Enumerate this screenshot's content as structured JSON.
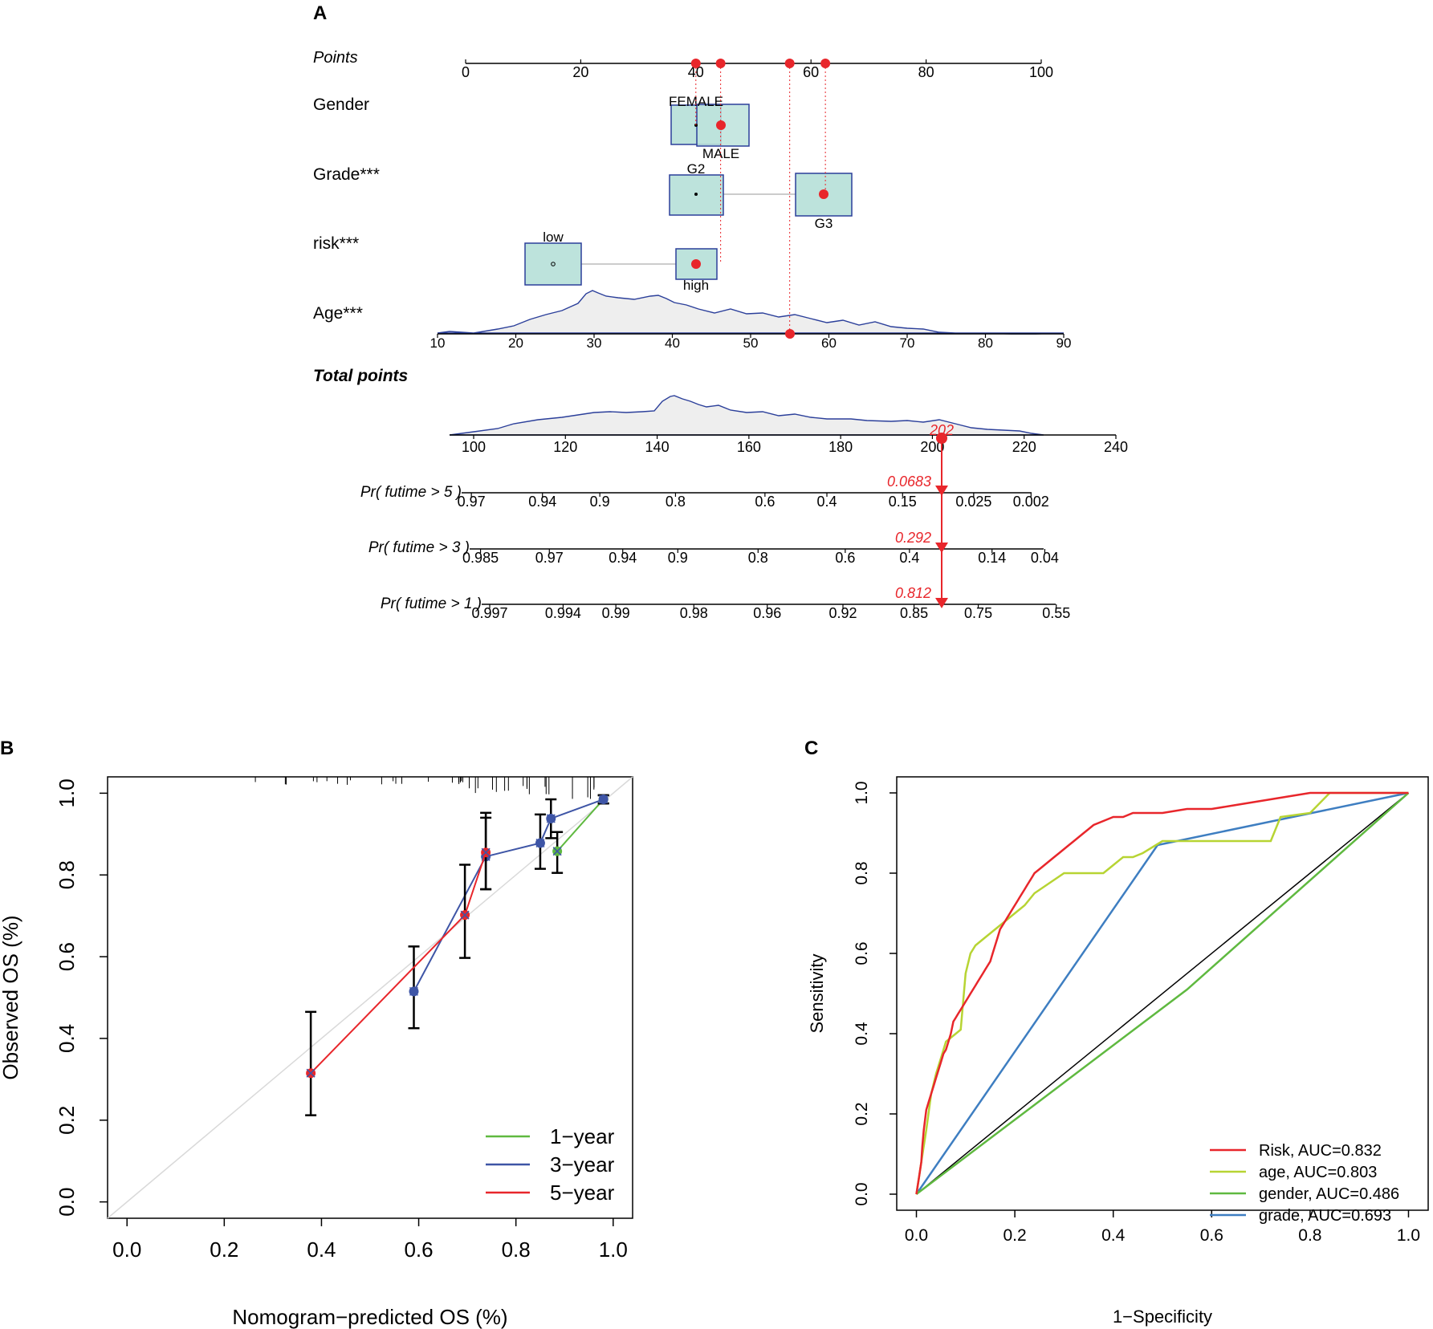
{
  "chart_data": [
    {
      "type": "nomogram",
      "panel_label": "A",
      "points_axis": {
        "label": "Points",
        "range": [
          0,
          100
        ],
        "ticks": [
          0,
          20,
          40,
          60,
          80,
          100
        ]
      },
      "variables": [
        {
          "name": "Gender",
          "levels": [
            {
              "label": "FEMALE",
              "points": 40
            },
            {
              "label": "MALE",
              "points": 44.3
            }
          ],
          "selected": "MALE"
        },
        {
          "name": "Grade***",
          "levels": [
            {
              "label": "G2",
              "points": 40
            },
            {
              "label": "G3",
              "points": 62.5
            }
          ],
          "selected": "G3"
        },
        {
          "name": "risk***",
          "levels": [
            {
              "label": "low",
              "points": 14.8
            },
            {
              "label": "high",
              "points": 40
            }
          ],
          "selected": "high"
        }
      ],
      "age": {
        "name": "Age***",
        "ticks": [
          10,
          20,
          30,
          40,
          50,
          60,
          70,
          80,
          90
        ],
        "selected": 55,
        "selected_points": 56.3
      },
      "total_points": {
        "label": "Total points",
        "ticks": [
          100,
          120,
          140,
          160,
          180,
          200,
          220,
          240
        ],
        "value": 202,
        "value_label": "202"
      },
      "selected_points": [
        40,
        44.3,
        56.3,
        62.5
      ],
      "probabilities": [
        {
          "label": "Pr( futime > 5 )",
          "value_label": "0.0683",
          "ticks": [
            {
              "label": "0.97",
              "total": 99.5
            },
            {
              "label": "0.94",
              "total": 115
            },
            {
              "label": "0.9",
              "total": 127.5
            },
            {
              "label": "0.8",
              "total": 144
            },
            {
              "label": "0.6",
              "total": 163.5
            },
            {
              "label": "0.4",
              "total": 177
            },
            {
              "label": "0.15",
              "total": 193.5
            },
            {
              "label": "0.025",
              "total": 209
            },
            {
              "label": "0.002",
              "total": 221.5
            }
          ]
        },
        {
          "label": "Pr( futime > 3 )",
          "value_label": "0.292",
          "ticks": [
            {
              "label": "0.985",
              "total": 101.5
            },
            {
              "label": "0.97",
              "total": 116.5
            },
            {
              "label": "0.94",
              "total": 132.5
            },
            {
              "label": "0.9",
              "total": 144.5
            },
            {
              "label": "0.8",
              "total": 162
            },
            {
              "label": "0.6",
              "total": 181
            },
            {
              "label": "0.4",
              "total": 195
            },
            {
              "label": "0.14",
              "total": 213
            },
            {
              "label": "0.04",
              "total": 224.5
            }
          ]
        },
        {
          "label": "Pr( futime > 1 )",
          "value_label": "0.812",
          "ticks": [
            {
              "label": "0.997",
              "total": 103.5
            },
            {
              "label": "0.994",
              "total": 119.5
            },
            {
              "label": "0.99",
              "total": 131
            },
            {
              "label": "0.98",
              "total": 148
            },
            {
              "label": "0.96",
              "total": 164
            },
            {
              "label": "0.92",
              "total": 180.5
            },
            {
              "label": "0.85",
              "total": 196
            },
            {
              "label": "0.75",
              "total": 210
            },
            {
              "label": "0.55",
              "total": 227
            }
          ]
        }
      ]
    },
    {
      "type": "scatter",
      "panel_label": "B",
      "xlabel": "Nomogram−predicted OS (%)",
      "ylabel": "Observed OS (%)",
      "xlim": [
        -0.04,
        1.04
      ],
      "ylim": [
        -0.04,
        1.04
      ],
      "xticks": [
        "0.0",
        "0.2",
        "0.4",
        "0.6",
        "0.8",
        "1.0"
      ],
      "yticks": [
        "0.0",
        "0.2",
        "0.4",
        "0.6",
        "0.8",
        "1.0"
      ],
      "rug_ticks": 40,
      "legend": {
        "position": "bottom-right",
        "entries": [
          "1−year",
          "3−year",
          "5−year"
        ]
      },
      "series": [
        {
          "name": "1−year",
          "color": "#5fb940",
          "x": [
            0.885,
            0.98
          ],
          "y": [
            0.858,
            0.985
          ],
          "lo": [
            0.805,
            0.975
          ],
          "hi": [
            0.905,
            0.995
          ]
        },
        {
          "name": "3−year",
          "color": "#3e55a6",
          "x": [
            0.59,
            0.738,
            0.85,
            0.872,
            0.98
          ],
          "y": [
            0.515,
            0.845,
            0.878,
            0.938,
            0.985
          ],
          "lo": [
            0.425,
            0.765,
            0.815,
            0.89,
            0.975
          ],
          "hi": [
            0.625,
            0.94,
            0.948,
            0.985,
            0.995
          ]
        },
        {
          "name": "5−year",
          "color": "#e8262b",
          "x": [
            0.378,
            0.695,
            0.738
          ],
          "y": [
            0.315,
            0.702,
            0.855
          ],
          "lo": [
            0.212,
            0.597,
            0.765
          ],
          "hi": [
            0.465,
            0.825,
            0.952
          ]
        }
      ]
    },
    {
      "type": "line",
      "panel_label": "C",
      "xlabel": "1−Specificity",
      "ylabel": "Sensitivity",
      "xlim": [
        -0.04,
        1.04
      ],
      "ylim": [
        -0.04,
        1.04
      ],
      "xticks": [
        "0.0",
        "0.2",
        "0.4",
        "0.6",
        "0.8",
        "1.0"
      ],
      "yticks": [
        "0.0",
        "0.2",
        "0.4",
        "0.6",
        "0.8",
        "1.0"
      ],
      "legend": {
        "position": "bottom-right"
      },
      "series": [
        {
          "name": "Risk, AUC=0.832",
          "color": "#e8262b",
          "x": [
            0,
            0.005,
            0.01,
            0.012,
            0.015,
            0.02,
            0.025,
            0.03,
            0.035,
            0.04,
            0.045,
            0.05,
            0.055,
            0.06,
            0.065,
            0.07,
            0.075,
            0.08,
            0.085,
            0.09,
            0.095,
            0.1,
            0.105,
            0.11,
            0.115,
            0.12,
            0.125,
            0.13,
            0.135,
            0.14,
            0.145,
            0.15,
            0.155,
            0.16,
            0.165,
            0.17,
            0.175,
            0.18,
            0.185,
            0.19,
            0.195,
            0.2,
            0.205,
            0.21,
            0.215,
            0.22,
            0.225,
            0.23,
            0.235,
            0.24,
            0.25,
            0.26,
            0.27,
            0.28,
            0.29,
            0.3,
            0.31,
            0.32,
            0.33,
            0.34,
            0.35,
            0.36,
            0.38,
            0.4,
            0.42,
            0.44,
            0.46,
            0.48,
            0.5,
            0.55,
            0.6,
            0.65,
            0.7,
            0.75,
            0.8,
            0.85,
            1
          ],
          "y": [
            0,
            0.04,
            0.08,
            0.12,
            0.16,
            0.21,
            0.23,
            0.25,
            0.27,
            0.29,
            0.31,
            0.33,
            0.35,
            0.36,
            0.38,
            0.4,
            0.43,
            0.44,
            0.45,
            0.46,
            0.47,
            0.48,
            0.49,
            0.5,
            0.51,
            0.52,
            0.53,
            0.54,
            0.55,
            0.56,
            0.57,
            0.58,
            0.6,
            0.62,
            0.64,
            0.66,
            0.67,
            0.68,
            0.69,
            0.7,
            0.71,
            0.72,
            0.73,
            0.74,
            0.75,
            0.76,
            0.77,
            0.78,
            0.79,
            0.8,
            0.81,
            0.82,
            0.83,
            0.84,
            0.85,
            0.86,
            0.87,
            0.88,
            0.89,
            0.9,
            0.91,
            0.92,
            0.93,
            0.94,
            0.94,
            0.95,
            0.95,
            0.95,
            0.95,
            0.96,
            0.96,
            0.97,
            0.98,
            0.99,
            1,
            1,
            1
          ]
        },
        {
          "name": "age, AUC=0.803",
          "color": "#b7d433",
          "x": [
            0,
            0.005,
            0.01,
            0.015,
            0.02,
            0.03,
            0.04,
            0.05,
            0.06,
            0.07,
            0.08,
            0.09,
            0.1,
            0.11,
            0.12,
            0.14,
            0.16,
            0.18,
            0.2,
            0.22,
            0.24,
            0.3,
            0.38,
            0.4,
            0.42,
            0.44,
            0.46,
            0.5,
            0.6,
            0.7,
            0.72,
            0.74,
            0.8,
            0.84,
            1
          ],
          "y": [
            0,
            0.04,
            0.08,
            0.12,
            0.16,
            0.25,
            0.3,
            0.34,
            0.38,
            0.39,
            0.4,
            0.41,
            0.55,
            0.6,
            0.62,
            0.64,
            0.66,
            0.68,
            0.7,
            0.72,
            0.75,
            0.8,
            0.8,
            0.82,
            0.84,
            0.84,
            0.85,
            0.88,
            0.88,
            0.88,
            0.88,
            0.94,
            0.95,
            1,
            1
          ]
        },
        {
          "name": "gender, AUC=0.486",
          "color": "#5fb940",
          "x": [
            0,
            0.55,
            1
          ],
          "y": [
            0,
            0.51,
            1
          ]
        },
        {
          "name": "grade, AUC=0.693",
          "color": "#3e7ec1",
          "x": [
            0,
            0.49,
            1
          ],
          "y": [
            0,
            0.87,
            1
          ]
        }
      ],
      "reference_line": "diagonal"
    }
  ]
}
